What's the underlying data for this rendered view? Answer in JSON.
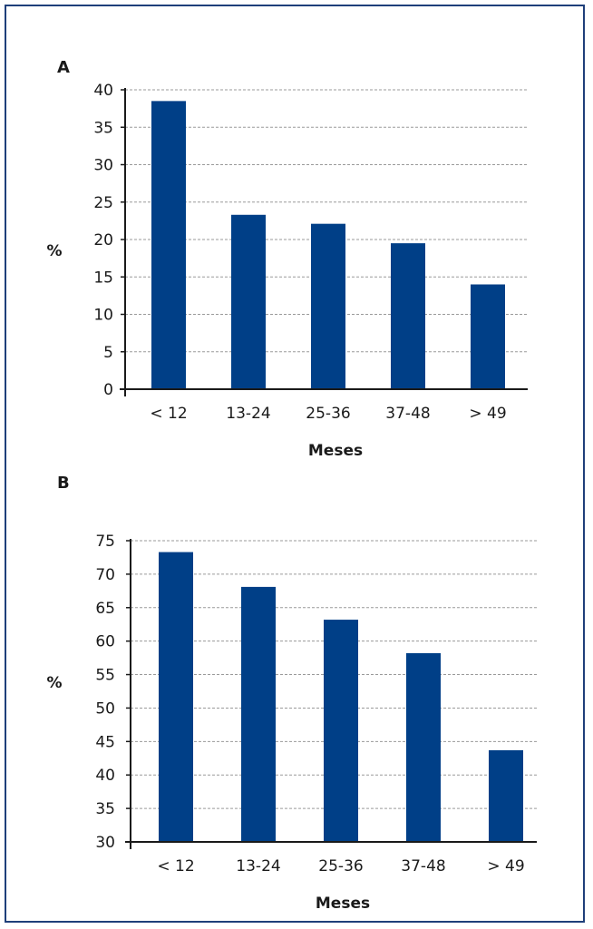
{
  "chart_data": [
    {
      "type": "bar",
      "panel_label": "A",
      "categories": [
        "< 12",
        "13-24",
        "25-36",
        "37-48",
        "> 49"
      ],
      "values": [
        38.5,
        23.3,
        22.1,
        19.5,
        14.0
      ],
      "xlabel": "Meses",
      "ylabel": "%",
      "ylim": [
        0,
        40
      ],
      "yticks": [
        0,
        5,
        10,
        15,
        20,
        25,
        30,
        35,
        40
      ],
      "grid": true,
      "bar_color": "#003f87"
    },
    {
      "type": "bar",
      "panel_label": "B",
      "categories": [
        "< 12",
        "13-24",
        "25-36",
        "37-48",
        "> 49"
      ],
      "values": [
        73.3,
        68.1,
        63.2,
        58.2,
        43.7
      ],
      "xlabel": "Meses",
      "ylabel": "%",
      "ylim": [
        30,
        75
      ],
      "yticks": [
        30,
        35,
        40,
        45,
        50,
        55,
        60,
        65,
        70,
        75
      ],
      "ytick_labels": [
        "30",
        "35",
        "40",
        "45",
        "50",
        "55",
        "60",
        "65",
        "70",
        "75"
      ],
      "grid": true,
      "bar_color": "#003f87"
    }
  ],
  "colors": {
    "border": "#1f3f7a",
    "bar": "#003f87",
    "grid": "#9a9a9a"
  }
}
